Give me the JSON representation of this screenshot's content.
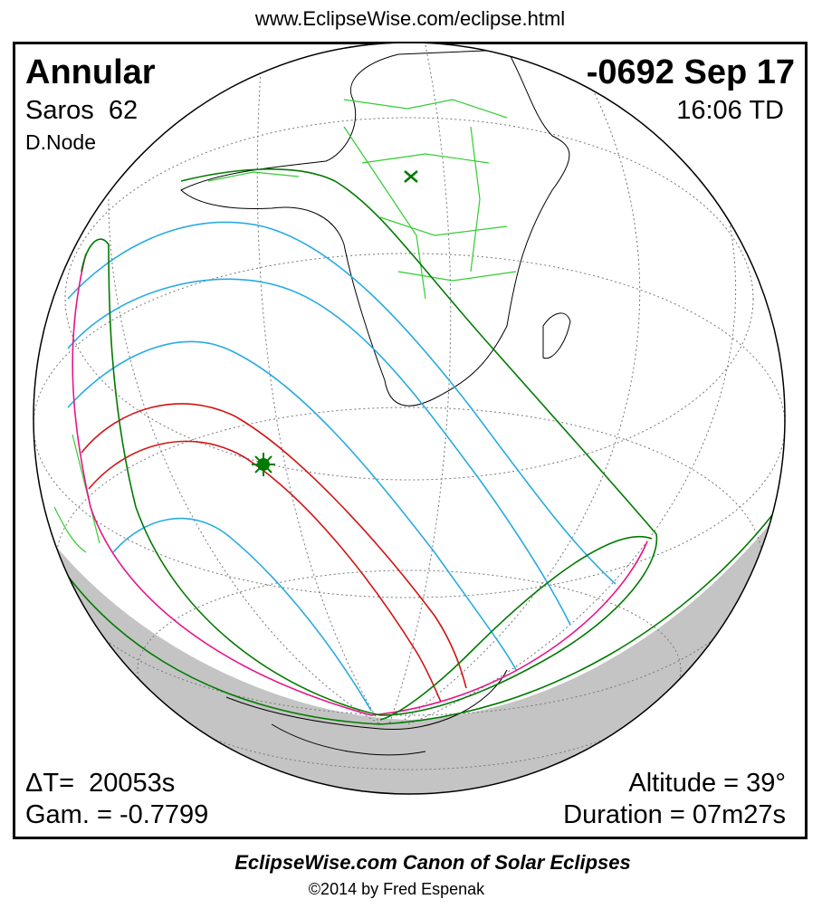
{
  "header": {
    "url": "www.EclipseWise.com/eclipse.html"
  },
  "eclipse": {
    "type": "Annular",
    "saros": "Saros  62",
    "node": "D.Node",
    "date": "-0692 Sep 17",
    "time": "16:06 TD",
    "delta_t": "ΔT=  20053s",
    "gamma": "Gam. = -0.7799",
    "altitude": "Altitude = 39°",
    "duration": "Duration = 07m27s"
  },
  "footer": {
    "title": "EclipseWise.com Canon of Solar Eclipses",
    "copyright": "©2014 by Fred Espenak"
  }
}
